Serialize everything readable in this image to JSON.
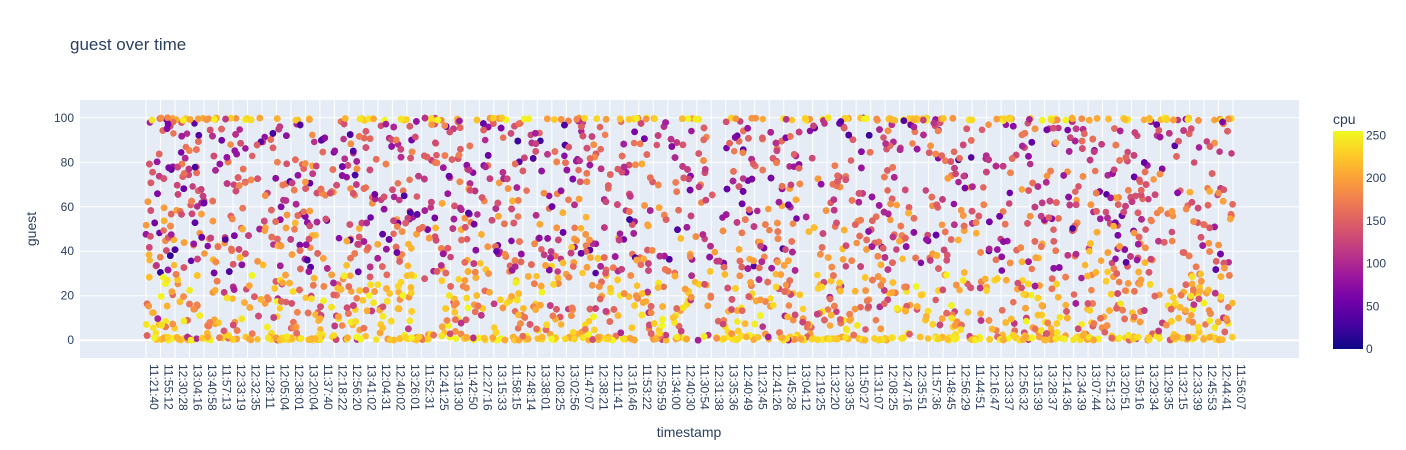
{
  "chart_data": {
    "type": "scatter",
    "title": "guest over time",
    "xlabel": "timestamp",
    "ylabel": "guest",
    "ylim": [
      -8,
      108
    ],
    "yticks": [
      0,
      20,
      40,
      60,
      80,
      100
    ],
    "grid": true,
    "x_ticks": [
      "11:21:40",
      "11:55:12",
      "12:30:28",
      "13:04:16",
      "13:40:58",
      "11:57:13",
      "12:33:19",
      "12:32:35",
      "11:28:11",
      "12:05:04",
      "12:38:01",
      "13:20:04",
      "11:37:40",
      "12:18:22",
      "12:56:20",
      "13:41:02",
      "12:04:31",
      "12:40:02",
      "13:26:01",
      "11:52:31",
      "12:41:25",
      "13:19:30",
      "11:42:50",
      "12:27:16",
      "13:15:33",
      "11:58:15",
      "12:48:14",
      "13:38:01",
      "12:08:25",
      "13:02:56",
      "11:47:07",
      "12:38:21",
      "12:11:41",
      "13:16:46",
      "11:53:22",
      "12:59:59",
      "11:34:00",
      "12:40:30",
      "11:30:54",
      "12:31:38",
      "13:35:36",
      "12:40:49",
      "11:23:45",
      "12:41:26",
      "11:45:28",
      "13:04:12",
      "12:19:25",
      "11:32:20",
      "12:39:35",
      "11:50:27",
      "11:31:07",
      "12:08:25",
      "12:47:16",
      "12:35:51",
      "11:57:36",
      "11:48:45",
      "12:56:29",
      "11:44:51",
      "12:16:47",
      "12:33:37",
      "12:56:32",
      "13:15:39",
      "13:28:37",
      "12:14:36",
      "12:34:39",
      "13:07:44",
      "12:51:23",
      "13:20:51",
      "11:59:16",
      "13:29:34",
      "11:29:35",
      "11:32:15",
      "12:33:39",
      "12:45:53",
      "12:44:41",
      "11:56:07"
    ],
    "n_points": 8000,
    "colorbar": {
      "title": "cpu",
      "range": [
        0,
        255
      ],
      "ticks": [
        0,
        50,
        100,
        150,
        200,
        250
      ],
      "colorscale": [
        "#0d0887",
        "#46039f",
        "#7201a8",
        "#9c179e",
        "#bd3786",
        "#d8576b",
        "#ed7953",
        "#fb9f3a",
        "#fdca26",
        "#f0f921"
      ]
    },
    "distribution_note": "guest values span 0–100 across all timestamps; dense yellow band at 0 and at 100"
  },
  "colors": {
    "plot_bg": "#e5ecf6",
    "grid": "#ffffff",
    "text": "#2a3f5f"
  }
}
